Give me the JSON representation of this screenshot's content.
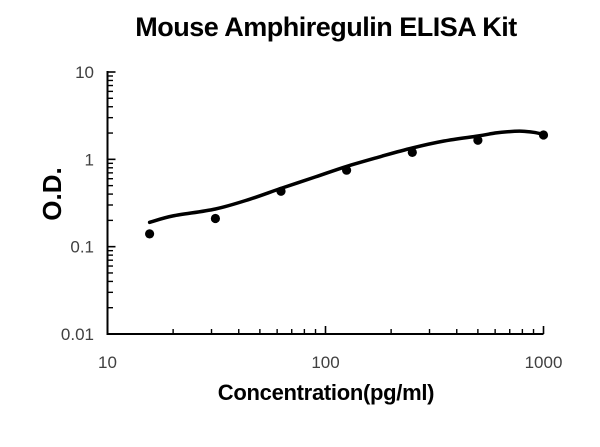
{
  "figure": {
    "background": "#ffffff"
  },
  "chart_data": {
    "type": "scatter",
    "title": "Mouse Amphiregulin ELISA Kit",
    "xlabel": "Concentration(pg/ml)",
    "ylabel": "O.D.",
    "x_scale": "log",
    "y_scale": "log",
    "xlim": [
      10,
      1000
    ],
    "ylim": [
      0.01,
      10
    ],
    "grid": false,
    "legend": null,
    "x_ticks": [
      {
        "value": 10,
        "label": "10"
      },
      {
        "value": 100,
        "label": "100"
      },
      {
        "value": 1000,
        "label": "1000"
      }
    ],
    "y_ticks": [
      {
        "value": 0.01,
        "label": "0.01"
      },
      {
        "value": 0.1,
        "label": "0.1"
      },
      {
        "value": 1,
        "label": "1"
      },
      {
        "value": 10,
        "label": "10"
      }
    ],
    "series": [
      {
        "name": "standard-points",
        "type": "scatter",
        "marker": "filled-circle",
        "marker_radius": 4.6,
        "color": "#000000",
        "x": [
          15.6,
          31.25,
          62.5,
          125,
          250,
          500,
          1000
        ],
        "y": [
          0.14,
          0.21,
          0.43,
          0.75,
          1.2,
          1.65,
          1.9
        ]
      },
      {
        "name": "fitted-curve",
        "type": "line",
        "line_width": 3.5,
        "color": "#000000",
        "x": [
          15.6,
          20,
          31.25,
          45,
          62.5,
          90,
          125,
          180,
          250,
          350,
          500,
          600,
          700,
          800,
          900,
          1000
        ],
        "y": [
          0.19,
          0.225,
          0.27,
          0.35,
          0.465,
          0.63,
          0.83,
          1.08,
          1.35,
          1.62,
          1.85,
          2.0,
          2.08,
          2.1,
          2.04,
          1.93
        ]
      }
    ],
    "colors": {
      "axis": "#000000",
      "tick_label": "#404040",
      "title": "#000000"
    }
  }
}
